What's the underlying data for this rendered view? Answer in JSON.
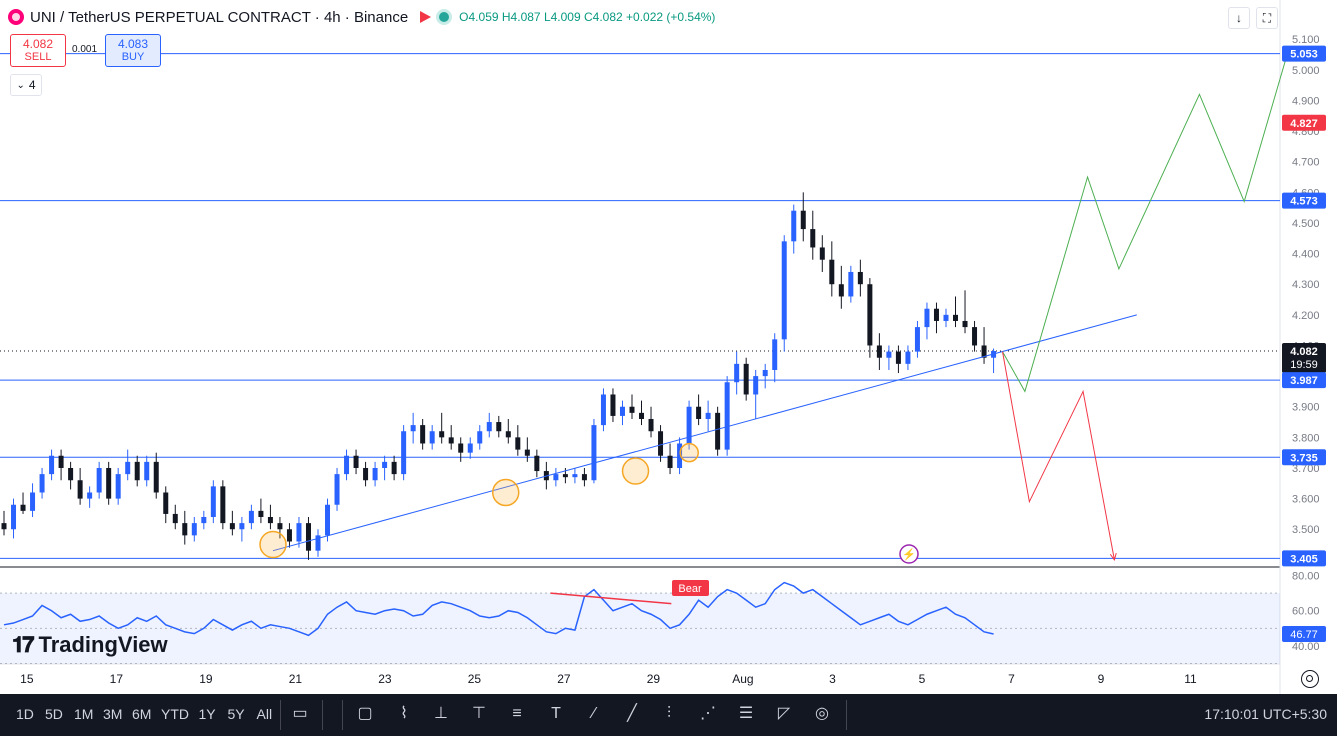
{
  "header": {
    "symbol": "UNI / TetherUS PERPETUAL CONTRACT · 4h · Binance",
    "o": "O4.059",
    "h": "H4.087",
    "l": "L4.009",
    "c": "C4.082",
    "change": "+0.022 (+0.54%)"
  },
  "trade": {
    "sell_price": "4.082",
    "sell_label": "SELL",
    "buy_price": "4.083",
    "buy_label": "BUY",
    "spread": "0.001"
  },
  "indicator_count": "4",
  "brand": "TradingView",
  "rsi_label": "Bear",
  "timeframes": [
    "1D",
    "5D",
    "1M",
    "3M",
    "6M",
    "YTD",
    "1Y",
    "5Y",
    "All"
  ],
  "clock": "17:10:01 UTC+5:30",
  "icons": [
    "calendar-range-icon",
    "rectangle-icon",
    "path-icon",
    "long-position-icon",
    "short-position-icon",
    "fib-icon",
    "text-icon",
    "brush-icon",
    "trendline-icon",
    "forecast-icon",
    "pattern-icon",
    "volume-profile-icon",
    "ruler-icon",
    "zoom-icon"
  ],
  "colors": {
    "up": "#2962ff",
    "down": "#131722",
    "line": "#2962ff",
    "bull": "#4caf50",
    "bear": "#f23645",
    "rsi": "#2962ff",
    "accent_red": "#f23645"
  },
  "chart_data": {
    "type": "candlestick",
    "title": "UNI / TetherUS PERPETUAL CONTRACT · 4h · Binance",
    "y_ticks": [
      "5.100",
      "5.000",
      "4.900",
      "4.800",
      "4.700",
      "4.600",
      "4.500",
      "4.400",
      "4.300",
      "4.200",
      "4.100",
      "4.000",
      "3.900",
      "3.800",
      "3.700",
      "3.600",
      "3.500"
    ],
    "y_range": [
      3.38,
      5.13
    ],
    "x_ticks": [
      "15",
      "17",
      "19",
      "21",
      "23",
      "25",
      "27",
      "29",
      "Aug",
      "3",
      "5",
      "7",
      "9",
      "11"
    ],
    "x_range": [
      14.2,
      42.8
    ],
    "price_labels": [
      {
        "value": 5.053,
        "text": "5.053",
        "kind": "level"
      },
      {
        "value": 4.827,
        "text": "4.827",
        "kind": "alert"
      },
      {
        "value": 4.573,
        "text": "4.573",
        "kind": "level"
      },
      {
        "value": 4.082,
        "text": "4.082",
        "kind": "last",
        "sub": "19:59"
      },
      {
        "value": 3.987,
        "text": "3.987",
        "kind": "level"
      },
      {
        "value": 3.735,
        "text": "3.735",
        "kind": "level"
      },
      {
        "value": 3.405,
        "text": "3.405",
        "kind": "level"
      }
    ],
    "horizontal_levels": [
      5.053,
      4.573,
      3.987,
      3.735,
      3.405
    ],
    "last_price": 4.082,
    "trendline": [
      [
        20.3,
        3.43
      ],
      [
        39.6,
        4.2
      ]
    ],
    "bull_projection": [
      [
        36.6,
        4.08
      ],
      [
        37.1,
        3.95
      ],
      [
        38.5,
        4.65
      ],
      [
        39.2,
        4.35
      ],
      [
        41.0,
        4.92
      ],
      [
        42.0,
        4.57
      ],
      [
        43.0,
        5.07
      ]
    ],
    "bear_projection": [
      [
        36.6,
        4.08
      ],
      [
        37.2,
        3.59
      ],
      [
        38.4,
        3.95
      ],
      [
        39.1,
        3.4
      ]
    ],
    "circles": [
      [
        20.3,
        3.45
      ],
      [
        25.5,
        3.62
      ],
      [
        28.4,
        3.69
      ],
      [
        29.6,
        3.75
      ]
    ],
    "ohlc": [
      [
        3.52,
        3.56,
        3.48,
        3.5
      ],
      [
        3.5,
        3.6,
        3.47,
        3.58
      ],
      [
        3.58,
        3.62,
        3.55,
        3.56
      ],
      [
        3.56,
        3.65,
        3.54,
        3.62
      ],
      [
        3.62,
        3.7,
        3.6,
        3.68
      ],
      [
        3.68,
        3.76,
        3.66,
        3.74
      ],
      [
        3.74,
        3.76,
        3.66,
        3.7
      ],
      [
        3.7,
        3.72,
        3.63,
        3.66
      ],
      [
        3.66,
        3.7,
        3.58,
        3.6
      ],
      [
        3.6,
        3.64,
        3.57,
        3.62
      ],
      [
        3.62,
        3.72,
        3.6,
        3.7
      ],
      [
        3.7,
        3.72,
        3.58,
        3.6
      ],
      [
        3.6,
        3.7,
        3.58,
        3.68
      ],
      [
        3.68,
        3.76,
        3.66,
        3.72
      ],
      [
        3.72,
        3.74,
        3.64,
        3.66
      ],
      [
        3.66,
        3.74,
        3.64,
        3.72
      ],
      [
        3.72,
        3.75,
        3.6,
        3.62
      ],
      [
        3.62,
        3.64,
        3.52,
        3.55
      ],
      [
        3.55,
        3.58,
        3.5,
        3.52
      ],
      [
        3.52,
        3.56,
        3.45,
        3.48
      ],
      [
        3.48,
        3.54,
        3.46,
        3.52
      ],
      [
        3.52,
        3.56,
        3.5,
        3.54
      ],
      [
        3.54,
        3.66,
        3.52,
        3.64
      ],
      [
        3.64,
        3.66,
        3.5,
        3.52
      ],
      [
        3.52,
        3.56,
        3.48,
        3.5
      ],
      [
        3.5,
        3.54,
        3.46,
        3.52
      ],
      [
        3.52,
        3.58,
        3.5,
        3.56
      ],
      [
        3.56,
        3.6,
        3.52,
        3.54
      ],
      [
        3.54,
        3.58,
        3.5,
        3.52
      ],
      [
        3.52,
        3.54,
        3.47,
        3.5
      ],
      [
        3.5,
        3.52,
        3.44,
        3.46
      ],
      [
        3.46,
        3.54,
        3.44,
        3.52
      ],
      [
        3.52,
        3.54,
        3.4,
        3.43
      ],
      [
        3.43,
        3.5,
        3.41,
        3.48
      ],
      [
        3.48,
        3.6,
        3.46,
        3.58
      ],
      [
        3.58,
        3.7,
        3.56,
        3.68
      ],
      [
        3.68,
        3.76,
        3.66,
        3.74
      ],
      [
        3.74,
        3.76,
        3.68,
        3.7
      ],
      [
        3.7,
        3.72,
        3.64,
        3.66
      ],
      [
        3.66,
        3.72,
        3.64,
        3.7
      ],
      [
        3.7,
        3.74,
        3.66,
        3.72
      ],
      [
        3.72,
        3.74,
        3.66,
        3.68
      ],
      [
        3.68,
        3.84,
        3.66,
        3.82
      ],
      [
        3.82,
        3.88,
        3.78,
        3.84
      ],
      [
        3.84,
        3.86,
        3.76,
        3.78
      ],
      [
        3.78,
        3.84,
        3.76,
        3.82
      ],
      [
        3.82,
        3.88,
        3.78,
        3.8
      ],
      [
        3.8,
        3.84,
        3.76,
        3.78
      ],
      [
        3.78,
        3.8,
        3.72,
        3.75
      ],
      [
        3.75,
        3.8,
        3.73,
        3.78
      ],
      [
        3.78,
        3.84,
        3.76,
        3.82
      ],
      [
        3.82,
        3.88,
        3.8,
        3.85
      ],
      [
        3.85,
        3.87,
        3.8,
        3.82
      ],
      [
        3.82,
        3.86,
        3.78,
        3.8
      ],
      [
        3.8,
        3.84,
        3.74,
        3.76
      ],
      [
        3.76,
        3.8,
        3.72,
        3.74
      ],
      [
        3.74,
        3.76,
        3.67,
        3.69
      ],
      [
        3.69,
        3.72,
        3.63,
        3.66
      ],
      [
        3.66,
        3.7,
        3.64,
        3.68
      ],
      [
        3.68,
        3.7,
        3.65,
        3.67
      ],
      [
        3.67,
        3.7,
        3.65,
        3.68
      ],
      [
        3.68,
        3.7,
        3.64,
        3.66
      ],
      [
        3.66,
        3.86,
        3.65,
        3.84
      ],
      [
        3.84,
        3.96,
        3.82,
        3.94
      ],
      [
        3.94,
        3.96,
        3.85,
        3.87
      ],
      [
        3.87,
        3.92,
        3.84,
        3.9
      ],
      [
        3.9,
        3.94,
        3.86,
        3.88
      ],
      [
        3.88,
        3.92,
        3.84,
        3.86
      ],
      [
        3.86,
        3.9,
        3.8,
        3.82
      ],
      [
        3.82,
        3.84,
        3.72,
        3.74
      ],
      [
        3.74,
        3.78,
        3.68,
        3.7
      ],
      [
        3.7,
        3.8,
        3.68,
        3.78
      ],
      [
        3.78,
        3.92,
        3.76,
        3.9
      ],
      [
        3.9,
        3.94,
        3.84,
        3.86
      ],
      [
        3.86,
        3.92,
        3.82,
        3.88
      ],
      [
        3.88,
        3.9,
        3.74,
        3.76
      ],
      [
        3.76,
        4.0,
        3.74,
        3.98
      ],
      [
        3.98,
        4.08,
        3.94,
        4.04
      ],
      [
        4.04,
        4.06,
        3.92,
        3.94
      ],
      [
        3.94,
        4.02,
        3.86,
        4.0
      ],
      [
        4.0,
        4.04,
        3.96,
        4.02
      ],
      [
        4.02,
        4.14,
        3.98,
        4.12
      ],
      [
        4.12,
        4.46,
        4.08,
        4.44
      ],
      [
        4.44,
        4.56,
        4.4,
        4.54
      ],
      [
        4.54,
        4.6,
        4.44,
        4.48
      ],
      [
        4.48,
        4.54,
        4.38,
        4.42
      ],
      [
        4.42,
        4.46,
        4.34,
        4.38
      ],
      [
        4.38,
        4.44,
        4.26,
        4.3
      ],
      [
        4.3,
        4.36,
        4.22,
        4.26
      ],
      [
        4.26,
        4.36,
        4.24,
        4.34
      ],
      [
        4.34,
        4.38,
        4.26,
        4.3
      ],
      [
        4.3,
        4.32,
        4.06,
        4.1
      ],
      [
        4.1,
        4.14,
        4.02,
        4.06
      ],
      [
        4.06,
        4.1,
        4.02,
        4.08
      ],
      [
        4.08,
        4.1,
        4.01,
        4.04
      ],
      [
        4.04,
        4.1,
        4.02,
        4.08
      ],
      [
        4.08,
        4.18,
        4.06,
        4.16
      ],
      [
        4.16,
        4.24,
        4.12,
        4.22
      ],
      [
        4.22,
        4.24,
        4.14,
        4.18
      ],
      [
        4.18,
        4.22,
        4.16,
        4.2
      ],
      [
        4.2,
        4.26,
        4.16,
        4.18
      ],
      [
        4.18,
        4.28,
        4.14,
        4.16
      ],
      [
        4.16,
        4.18,
        4.08,
        4.1
      ],
      [
        4.1,
        4.16,
        4.04,
        4.06
      ],
      [
        4.06,
        4.09,
        4.01,
        4.082
      ]
    ],
    "rsi": {
      "y_ticks": [
        "80.00",
        "60.00",
        "40.00"
      ],
      "y_range": [
        32,
        82
      ],
      "last": "46.77",
      "values": [
        52,
        53,
        55,
        57,
        63,
        60,
        56,
        58,
        54,
        55,
        57,
        53,
        50,
        52,
        56,
        54,
        57,
        52,
        50,
        48,
        47,
        50,
        55,
        52,
        49,
        52,
        54,
        50,
        52,
        51,
        50,
        48,
        46,
        50,
        58,
        62,
        65,
        60,
        59,
        58,
        60,
        61,
        60,
        57,
        58,
        63,
        65,
        64,
        62,
        60,
        57,
        56,
        57,
        60,
        59,
        56,
        52,
        48,
        47,
        50,
        49,
        68,
        72,
        66,
        60,
        62,
        64,
        60,
        58,
        55,
        50,
        52,
        58,
        66,
        62,
        68,
        72,
        70,
        66,
        62,
        64,
        72,
        76,
        74,
        70,
        72,
        68,
        64,
        60,
        56,
        52,
        54,
        56,
        58,
        54,
        52,
        55,
        58,
        60,
        62,
        58,
        56,
        52,
        48,
        46.77
      ],
      "bear_segment": [
        [
          26.5,
          70
        ],
        [
          29.2,
          64
        ]
      ]
    }
  }
}
